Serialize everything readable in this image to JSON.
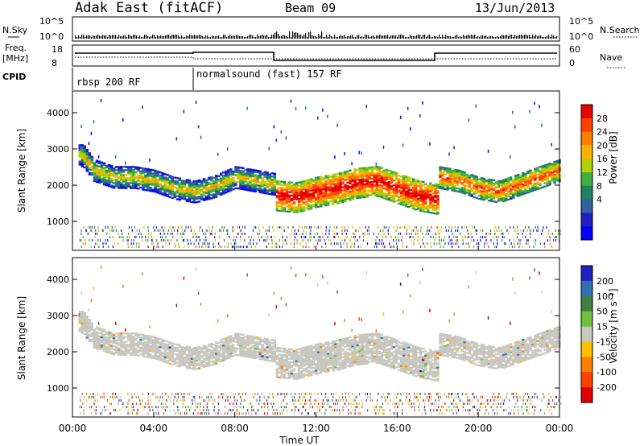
{
  "header": {
    "station": "Adak East (fitACF)",
    "beam": "Beam 09",
    "date": "13/Jun/2013"
  },
  "strips": {
    "nsky_label": "N.Sky",
    "nsky_ticks": [
      "10^5",
      "10^0"
    ],
    "nsearch_label": "N.Search",
    "nsearch_ticks": [
      "10^5",
      "10^0"
    ],
    "freq_label_1": "Freq.",
    "freq_label_2": "[MHz]",
    "freq_ticks": [
      "18",
      "8"
    ],
    "nave_label": "Nave",
    "nave_ticks": [
      "60",
      "0"
    ],
    "cpid_label": "CPID",
    "cpid_segments": [
      {
        "label": "rbsp 200 RF",
        "start_hour": 0,
        "end_hour": 6
      },
      {
        "label": "normalsound (fast) 157 RF",
        "start_hour": 6,
        "end_hour": 24
      }
    ]
  },
  "chart_data": [
    {
      "type": "heatmap",
      "panel": "power",
      "ylabel": "Slant Range [km]",
      "yticks": [
        "4000",
        "3000",
        "2000",
        "1000"
      ],
      "ylim": [
        200,
        4600
      ],
      "xlim": [
        0,
        24
      ],
      "colorbar_label": "Power [dB]",
      "colorbar_ticks": [
        "28",
        "24",
        "20",
        "16",
        "12",
        "8",
        "4"
      ],
      "colorbar_colors": [
        "#e60000",
        "#ff4000",
        "#ff8000",
        "#ffb000",
        "#b0d000",
        "#40b040",
        "#208060",
        "#3060a0",
        "#2020c0",
        "#0000ff"
      ],
      "echo_bands": [
        {
          "x": [
            0.5,
            1,
            2,
            3,
            4,
            5,
            6,
            7,
            8,
            9,
            10
          ],
          "y_center": [
            2800,
            2400,
            2200,
            2200,
            2100,
            1900,
            1800,
            1950,
            2200,
            2100,
            2000
          ],
          "dominant_power_db": 14
        },
        {
          "x": [
            10,
            11,
            12,
            13,
            14,
            15,
            16,
            17,
            18
          ],
          "y_center": [
            1700,
            1650,
            1800,
            1900,
            2050,
            2100,
            1900,
            1700,
            1600
          ],
          "dominant_power_db": 24
        },
        {
          "x": [
            18,
            19,
            20,
            21,
            22,
            23,
            24
          ],
          "y_center": [
            2200,
            2100,
            1900,
            1800,
            2000,
            2200,
            2400
          ],
          "dominant_power_db": 20
        }
      ]
    },
    {
      "type": "heatmap",
      "panel": "velocity",
      "ylabel": "Slant Range [km]",
      "yticks": [
        "4000",
        "3000",
        "2000",
        "1000"
      ],
      "ylim": [
        200,
        4600
      ],
      "xlim": [
        0,
        24
      ],
      "xticks": [
        "00:00",
        "04:00",
        "08:00",
        "12:00",
        "16:00",
        "20:00",
        "00:00"
      ],
      "xlabel": "Time UT",
      "colorbar_label": "Velocity [m s⁻¹]",
      "colorbar_ticks": [
        "200",
        "100",
        "50",
        "15",
        "-15",
        "-50",
        "-100",
        "-200"
      ],
      "colorbar_colors": [
        "#2020c0",
        "#3070b0",
        "#408040",
        "#70c040",
        "#c8c8c0",
        "#ffc000",
        "#ff8000",
        "#ff4000",
        "#e00000"
      ],
      "dominant_velocity_ms": 0
    }
  ]
}
